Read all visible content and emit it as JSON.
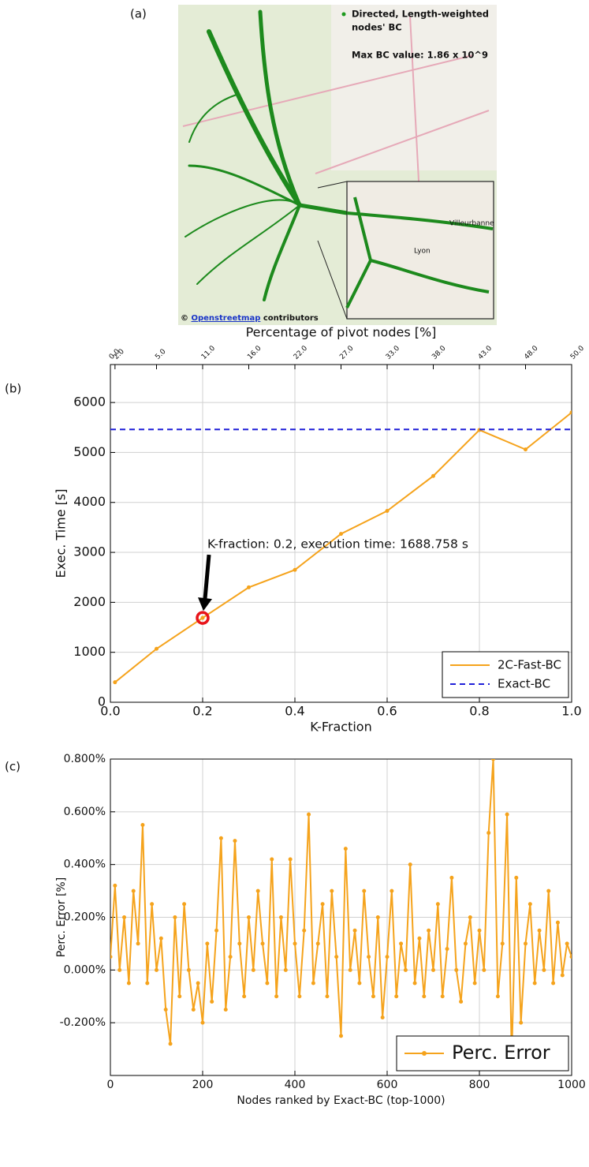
{
  "panel_labels": [
    "(a)",
    "(b)",
    "(c)"
  ],
  "map": {
    "legend_lines": [
      "Directed, Length-weighted",
      "nodes' BC"
    ],
    "max_value": "Max BC value: 1.86 x 10^9",
    "place_labels": [
      "Lyon",
      "Villeurbanne"
    ],
    "attribution": {
      "symbol": "©",
      "link": "Openstreetmap",
      "text": "contributors"
    }
  },
  "chart_data": [
    {
      "type": "line",
      "xlabel": "K-Fraction",
      "ylabel": "Exec. Time [s]",
      "x2label": "Percentage of pivot nodes [%]",
      "x": [
        0.01,
        0.1,
        0.2,
        0.3,
        0.4,
        0.5,
        0.6,
        0.7,
        0.8,
        0.9,
        1.0
      ],
      "series": [
        {
          "name": "2C-Fast-BC",
          "color": "#f5a31c",
          "markers": true,
          "linestyle": "solid",
          "values": [
            400,
            1070,
            1689,
            2300,
            2650,
            3370,
            3830,
            4530,
            5450,
            5060,
            5800
          ]
        },
        {
          "name": "Exact-BC",
          "color": "#1f1fd8",
          "markers": false,
          "linestyle": "dashed",
          "x": [
            0,
            1.0
          ],
          "values": [
            5460,
            5460
          ]
        }
      ],
      "xlim": [
        0,
        1.0
      ],
      "ylim": [
        0,
        6760
      ],
      "xticks": [
        {
          "value": 0,
          "label": "0.0"
        },
        {
          "value": 0.2,
          "label": "0.2"
        },
        {
          "value": 0.4,
          "label": "0.4"
        },
        {
          "value": 0.6,
          "label": "0.6"
        },
        {
          "value": 0.8,
          "label": "0.8"
        },
        {
          "value": 1.0,
          "label": "1.0"
        }
      ],
      "yticks": [
        0,
        1000,
        2000,
        3000,
        4000,
        5000,
        6000
      ],
      "x2ticks": [
        {
          "value": 0,
          "label": "0.0"
        },
        {
          "value": 0.01,
          "label": "2.0"
        },
        {
          "value": 0.1,
          "label": "5.0"
        },
        {
          "value": 0.2,
          "label": "11.0"
        },
        {
          "value": 0.3,
          "label": "16.0"
        },
        {
          "value": 0.4,
          "label": "22.0"
        },
        {
          "value": 0.5,
          "label": "27.0"
        },
        {
          "value": 0.6,
          "label": "33.0"
        },
        {
          "value": 0.7,
          "label": "38.0"
        },
        {
          "value": 0.8,
          "label": "43.0"
        },
        {
          "value": 0.9,
          "label": "48.0"
        },
        {
          "value": 1.0,
          "label": "50.0"
        }
      ],
      "annotation": {
        "text": "K-fraction: 0.2, execution time: 1688.758 s",
        "x": 0.2,
        "y": 1688.758
      },
      "grid": true,
      "legend": "lower right"
    },
    {
      "type": "line",
      "xlabel": "Nodes ranked by Exact-BC (top-1000)",
      "ylabel": "Perc. Error [%]",
      "x": [
        0,
        10,
        20,
        30,
        40,
        50,
        60,
        70,
        80,
        90,
        100,
        110,
        120,
        130,
        140,
        150,
        160,
        170,
        180,
        190,
        200,
        210,
        220,
        230,
        240,
        250,
        260,
        270,
        280,
        290,
        300,
        310,
        320,
        330,
        340,
        350,
        360,
        370,
        380,
        390,
        400,
        410,
        420,
        430,
        440,
        450,
        460,
        470,
        480,
        490,
        500,
        510,
        520,
        530,
        540,
        550,
        560,
        570,
        580,
        590,
        600,
        610,
        620,
        630,
        640,
        650,
        660,
        670,
        680,
        690,
        700,
        710,
        720,
        730,
        740,
        750,
        760,
        770,
        780,
        790,
        800,
        810,
        820,
        830,
        840,
        850,
        860,
        870,
        880,
        890,
        900,
        910,
        920,
        930,
        940,
        950,
        960,
        970,
        980,
        990,
        1000
      ],
      "series": [
        {
          "name": "Perc. Error",
          "color": "#f5a31c",
          "markers": true,
          "linestyle": "solid",
          "values": [
            0.05,
            0.32,
            0.0,
            0.2,
            -0.05,
            0.3,
            0.1,
            0.55,
            -0.05,
            0.25,
            0.0,
            0.12,
            -0.15,
            -0.28,
            0.2,
            -0.1,
            0.25,
            0.0,
            -0.15,
            -0.05,
            -0.2,
            0.1,
            -0.12,
            0.15,
            0.5,
            -0.15,
            0.05,
            0.49,
            0.1,
            -0.1,
            0.2,
            0.0,
            0.3,
            0.1,
            -0.05,
            0.42,
            -0.1,
            0.2,
            0.0,
            0.42,
            0.1,
            -0.1,
            0.15,
            0.59,
            -0.05,
            0.1,
            0.25,
            -0.1,
            0.3,
            0.05,
            -0.25,
            0.46,
            0.0,
            0.15,
            -0.05,
            0.3,
            0.05,
            -0.1,
            0.2,
            -0.18,
            0.05,
            0.3,
            -0.1,
            0.1,
            0.0,
            0.4,
            -0.05,
            0.12,
            -0.1,
            0.15,
            0.0,
            0.25,
            -0.1,
            0.08,
            0.35,
            0.0,
            -0.12,
            0.1,
            0.2,
            -0.05,
            0.15,
            0.0,
            0.52,
            0.8,
            -0.1,
            0.1,
            0.59,
            -0.33,
            0.35,
            -0.2,
            0.1,
            0.25,
            -0.05,
            0.15,
            0.0,
            0.3,
            -0.05,
            0.18,
            -0.02,
            0.1,
            0.05
          ]
        }
      ],
      "xlim": [
        0,
        1000
      ],
      "ylim": [
        -0.4,
        0.8
      ],
      "xticks": [
        0,
        200,
        400,
        600,
        800,
        1000
      ],
      "yticks": [
        {
          "value": -0.2,
          "label": "-0.200%"
        },
        {
          "value": 0,
          "label": "0.000%"
        },
        {
          "value": 0.2,
          "label": "0.200%"
        },
        {
          "value": 0.4,
          "label": "0.400%"
        },
        {
          "value": 0.6,
          "label": "0.600%"
        },
        {
          "value": 0.8,
          "label": "0.800%"
        }
      ],
      "grid": true,
      "legend": "lower right"
    }
  ]
}
